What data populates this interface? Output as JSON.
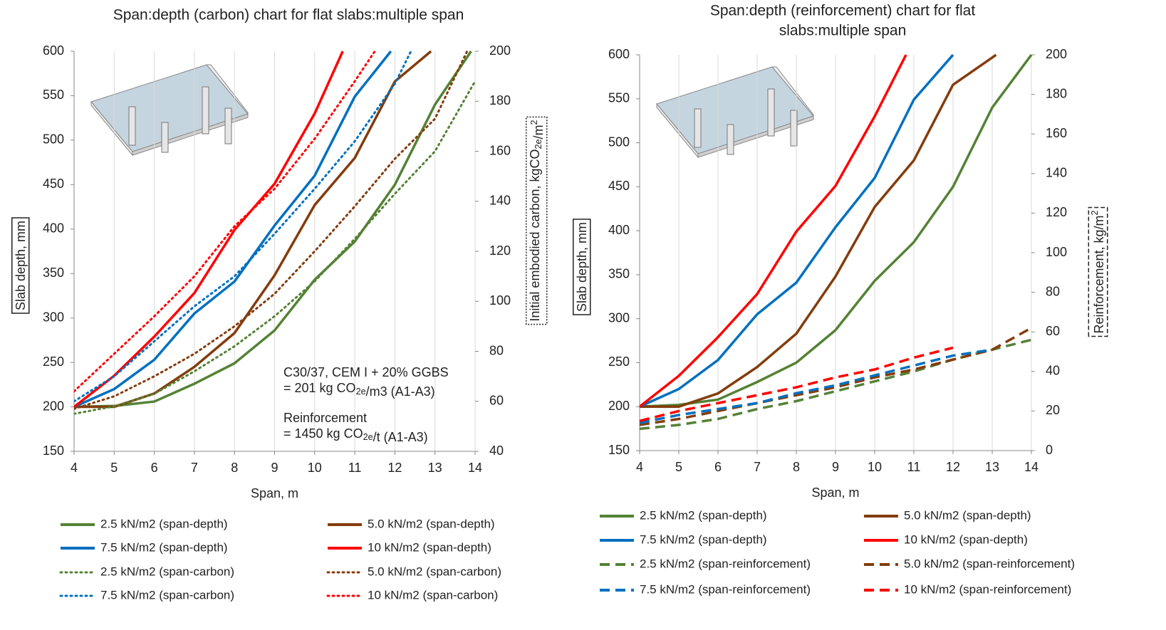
{
  "chart_data": [
    {
      "type": "line",
      "title": [
        "Span:depth (carbon) chart for flat slabs:multiple span"
      ],
      "xlabel": "Span, m",
      "ylabel": "Slab depth, mm",
      "y2label": [
        "Initial embodied carbon, kgCO",
        {
          "sub": "2e"
        },
        "/m",
        {
          "sup": "2"
        }
      ],
      "y2label_border": "dotted",
      "xlim": [
        4,
        14
      ],
      "xticks": [
        4,
        5,
        6,
        7,
        8,
        9,
        10,
        11,
        12,
        13,
        14
      ],
      "ylim": [
        150,
        600
      ],
      "yticks": [
        150,
        200,
        250,
        300,
        350,
        400,
        450,
        500,
        550,
        600
      ],
      "y2lim": [
        40,
        200
      ],
      "y2ticks": [
        40,
        60,
        80,
        100,
        120,
        140,
        160,
        180,
        200
      ],
      "grid": "x",
      "annotations": [
        [
          "C30/37, CEM I + 20% GGBS"
        ],
        [
          "= 201 kg CO",
          {
            "sub": "2e"
          },
          "/m3 (A1-A3)"
        ],
        [
          "Reinforcement"
        ],
        [
          "= 1450 kg CO",
          {
            "sub": "2e"
          },
          "/t (A1-A3)"
        ]
      ],
      "series": [
        {
          "name": "2.5 kN/m2 (span-depth)",
          "color": "#548235",
          "dash": "solid",
          "x": [
            4,
            5,
            6,
            7,
            8,
            9,
            10,
            11,
            12,
            13,
            13.9
          ],
          "values": [
            200,
            201,
            206,
            226,
            249,
            286,
            343,
            386,
            450,
            540,
            600
          ]
        },
        {
          "name": "5.0 kN/m2 (span-depth)",
          "color": "#843c0c",
          "dash": "solid",
          "x": [
            4,
            5,
            6,
            7,
            8,
            9,
            10,
            11,
            12,
            12.9
          ],
          "values": [
            200,
            200,
            215,
            245,
            283,
            348,
            427,
            480,
            566,
            600
          ]
        },
        {
          "name": "7.5 kN/m2 (span-depth)",
          "color": "#0070c0",
          "dash": "solid",
          "x": [
            4,
            5,
            6,
            7,
            8,
            9,
            10,
            11,
            11.9
          ],
          "values": [
            200,
            220,
            253,
            305,
            341,
            404,
            460,
            549,
            600
          ]
        },
        {
          "name": "10 kN/m2 (span-depth)",
          "color": "#ff0000",
          "dash": "solid",
          "x": [
            4,
            5,
            6,
            7,
            8,
            9,
            10,
            10.7
          ],
          "values": [
            200,
            235,
            279,
            328,
            399,
            451,
            530,
            600
          ]
        },
        {
          "name": "2.5 kN/m2 (span-carbon)",
          "color": "#548235",
          "dash": "dotted",
          "axis": "y2",
          "x": [
            4,
            5,
            6,
            7,
            8,
            9,
            10,
            11,
            12,
            13,
            14
          ],
          "values": [
            55,
            58,
            63,
            72,
            82,
            94,
            108,
            125,
            143,
            160,
            188
          ]
        },
        {
          "name": "5.0 kN/m2 (span-carbon)",
          "color": "#843c0c",
          "dash": "dotted",
          "axis": "y2",
          "x": [
            4,
            5,
            6,
            7,
            8,
            9,
            10,
            11,
            12,
            13,
            13.8
          ],
          "values": [
            57,
            62,
            70,
            79,
            90,
            103,
            120,
            138,
            157,
            173,
            200
          ]
        },
        {
          "name": "7.5 kN/m2 (span-carbon)",
          "color": "#0070c0",
          "dash": "dotted",
          "axis": "y2",
          "x": [
            4,
            5,
            6,
            7,
            8,
            9,
            10,
            11,
            12,
            12.4
          ],
          "values": [
            60,
            70,
            84,
            98,
            110,
            127,
            145,
            164,
            187,
            200
          ]
        },
        {
          "name": "10 kN/m2 (span-carbon)",
          "color": "#ff0000",
          "dash": "dotted",
          "axis": "y2",
          "x": [
            4,
            5,
            6,
            7,
            8,
            9,
            10,
            11,
            11.5
          ],
          "values": [
            64,
            79,
            94,
            110,
            130,
            145,
            165,
            188,
            200
          ]
        }
      ]
    },
    {
      "type": "line",
      "title": [
        "Span:depth (reinforcement) chart for flat",
        "slabs:multiple span"
      ],
      "xlabel": "Span, m",
      "ylabel": "Slab depth, mm",
      "y2label": [
        "Reinforcement, kg/m",
        {
          "sup": "2"
        }
      ],
      "y2label_border": "dashed",
      "xlim": [
        4,
        14
      ],
      "xticks": [
        4,
        5,
        6,
        7,
        8,
        9,
        10,
        11,
        12,
        13,
        14
      ],
      "ylim": [
        150,
        600
      ],
      "yticks": [
        150,
        200,
        250,
        300,
        350,
        400,
        450,
        500,
        550,
        600
      ],
      "y2lim": [
        0,
        200
      ],
      "y2ticks": [
        0,
        20,
        40,
        60,
        80,
        100,
        120,
        140,
        160,
        180,
        200
      ],
      "grid": "x",
      "series": [
        {
          "name": "2.5 kN/m2 (span-depth)",
          "color": "#548235",
          "dash": "solid",
          "x": [
            4,
            5,
            6,
            7,
            8,
            9,
            10,
            11,
            12,
            13,
            14
          ],
          "values": [
            200,
            202,
            208,
            228,
            250,
            287,
            343,
            387,
            450,
            540,
            600
          ]
        },
        {
          "name": "5.0 kN/m2 (span-depth)",
          "color": "#843c0c",
          "dash": "solid",
          "x": [
            4,
            5,
            6,
            7,
            8,
            9,
            10,
            11,
            12,
            13.1
          ],
          "values": [
            200,
            200,
            215,
            245,
            283,
            348,
            427,
            480,
            566,
            600
          ]
        },
        {
          "name": "7.5 kN/m2 (span-depth)",
          "color": "#0070c0",
          "dash": "solid",
          "x": [
            4,
            5,
            6,
            7,
            8,
            9,
            10,
            11,
            12
          ],
          "values": [
            200,
            220,
            253,
            305,
            341,
            404,
            460,
            549,
            600
          ]
        },
        {
          "name": "10 kN/m2 (span-depth)",
          "color": "#ff0000",
          "dash": "solid",
          "x": [
            4,
            5,
            6,
            7,
            8,
            9,
            10,
            10.8
          ],
          "values": [
            200,
            235,
            279,
            328,
            399,
            451,
            530,
            600
          ]
        },
        {
          "name": "2.5 kN/m2 (span-reinforcement)",
          "color": "#548235",
          "dash": "dashed",
          "axis": "y2",
          "x": [
            4,
            5,
            6,
            7,
            8,
            9,
            10,
            11,
            12,
            13,
            14
          ],
          "values": [
            11,
            13,
            16,
            21,
            25,
            30,
            35,
            40,
            46,
            51,
            56
          ]
        },
        {
          "name": "5.0 kN/m2 (span-reinforcement)",
          "color": "#843c0c",
          "dash": "dashed",
          "axis": "y2",
          "x": [
            4,
            5,
            6,
            7,
            8,
            9,
            10,
            11,
            12,
            13,
            14
          ],
          "values": [
            13,
            16,
            20,
            24,
            28,
            32,
            37,
            41,
            46,
            51,
            62
          ]
        },
        {
          "name": "7.5 kN/m2 (span-reinforcement)",
          "color": "#0070c0",
          "dash": "dashed",
          "axis": "y2",
          "x": [
            4,
            5,
            6,
            7,
            8,
            9,
            10,
            11,
            12,
            13
          ],
          "values": [
            14,
            18,
            21,
            24,
            29,
            33,
            38,
            43,
            48,
            51
          ]
        },
        {
          "name": "10 kN/m2 (span-reinforcement)",
          "color": "#ff0000",
          "dash": "dashed",
          "axis": "y2",
          "x": [
            4,
            5,
            6,
            7,
            8,
            9,
            10,
            11,
            12
          ],
          "values": [
            15,
            20,
            24,
            28,
            32,
            37,
            41,
            47,
            52
          ]
        }
      ]
    }
  ]
}
